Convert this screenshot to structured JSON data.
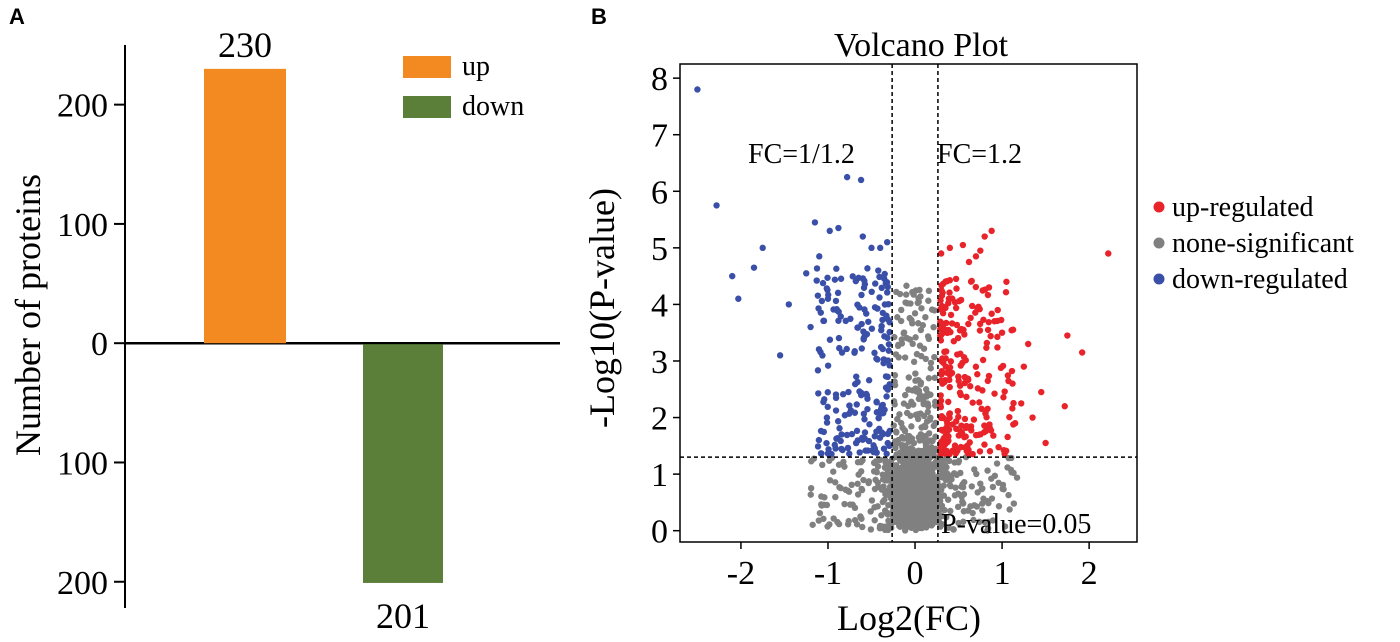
{
  "chart_data": [
    {
      "panel": "A",
      "type": "bar",
      "categories": [
        "up",
        "down"
      ],
      "values": [
        230,
        -201
      ],
      "data_labels": [
        "230",
        "201"
      ],
      "ylabel": "Number of proteins",
      "yticks": [
        200,
        100,
        0,
        -100,
        -200
      ],
      "ytick_labels": [
        "200",
        "100",
        "0",
        "100",
        "200"
      ],
      "ylim": [
        -222,
        250
      ],
      "legend": [
        {
          "label": "up",
          "color": "#f28a21"
        },
        {
          "label": "down",
          "color": "#5b7f38"
        }
      ],
      "colors": {
        "up": "#f28a21",
        "down": "#5b7f38"
      }
    },
    {
      "panel": "B",
      "type": "scatter",
      "title": "Volcano Plot",
      "xlabel": "Log2(FC)",
      "ylabel": "-Log10(P-value)",
      "xlim": [
        -2.7,
        2.55
      ],
      "ylim": [
        -0.2,
        8.25
      ],
      "xticks": [
        -2,
        -1,
        0,
        1,
        2
      ],
      "yticks": [
        0,
        1,
        2,
        3,
        4,
        5,
        6,
        7,
        8
      ],
      "thresholds": {
        "fc_low": -0.263,
        "fc_high": 0.263,
        "p": 1.301
      },
      "annotations": [
        "FC=1/1.2",
        "FC=1.2",
        "P-value=0.05"
      ],
      "legend": [
        {
          "label": "up-regulated",
          "color": "#e8232a"
        },
        {
          "label": "none-significant",
          "color": "#808080"
        },
        {
          "label": "down-regulated",
          "color": "#3a4fa8"
        }
      ],
      "colors": {
        "up": "#e8232a",
        "none": "#808080",
        "down": "#3a4fa8"
      },
      "series": [
        {
          "name": "up-regulated",
          "points": [
            [
              2.22,
              4.9
            ],
            [
              1.92,
              3.15
            ],
            [
              1.75,
              3.45
            ],
            [
              1.72,
              2.2
            ],
            [
              1.5,
              1.55
            ],
            [
              1.45,
              2.45
            ],
            [
              1.35,
              2.0
            ],
            [
              1.3,
              3.3
            ],
            [
              1.25,
              2.9
            ],
            [
              1.05,
              4.4
            ],
            [
              0.88,
              5.3
            ],
            [
              0.8,
              5.2
            ],
            [
              0.75,
              4.95
            ],
            [
              0.7,
              4.85
            ],
            [
              0.62,
              4.75
            ],
            [
              0.55,
              5.05
            ],
            [
              0.4,
              5.0
            ],
            [
              0.3,
              4.9
            ],
            [
              0.85,
              4.3
            ],
            [
              0.95,
              3.9
            ],
            [
              1.0,
              3.5
            ],
            [
              1.12,
              2.6
            ],
            [
              1.15,
              1.9
            ],
            [
              1.22,
              2.25
            ]
          ]
        },
        {
          "name": "down-regulated",
          "points": [
            [
              -2.5,
              7.8
            ],
            [
              -2.28,
              5.75
            ],
            [
              -2.1,
              4.5
            ],
            [
              -2.03,
              4.1
            ],
            [
              -1.85,
              4.65
            ],
            [
              -1.75,
              5.0
            ],
            [
              -1.55,
              3.1
            ],
            [
              -1.15,
              5.45
            ],
            [
              -0.98,
              5.3
            ],
            [
              -0.88,
              5.35
            ],
            [
              -0.62,
              6.2
            ],
            [
              -0.78,
              6.25
            ],
            [
              -0.6,
              5.2
            ],
            [
              -0.5,
              5.0
            ],
            [
              -0.4,
              5.0
            ],
            [
              -0.32,
              5.1
            ],
            [
              -1.1,
              4.85
            ],
            [
              -1.25,
              4.55
            ],
            [
              -1.45,
              4.0
            ],
            [
              -1.0,
              4.1
            ],
            [
              -0.9,
              3.9
            ],
            [
              -1.2,
              3.6
            ]
          ]
        }
      ]
    }
  ]
}
